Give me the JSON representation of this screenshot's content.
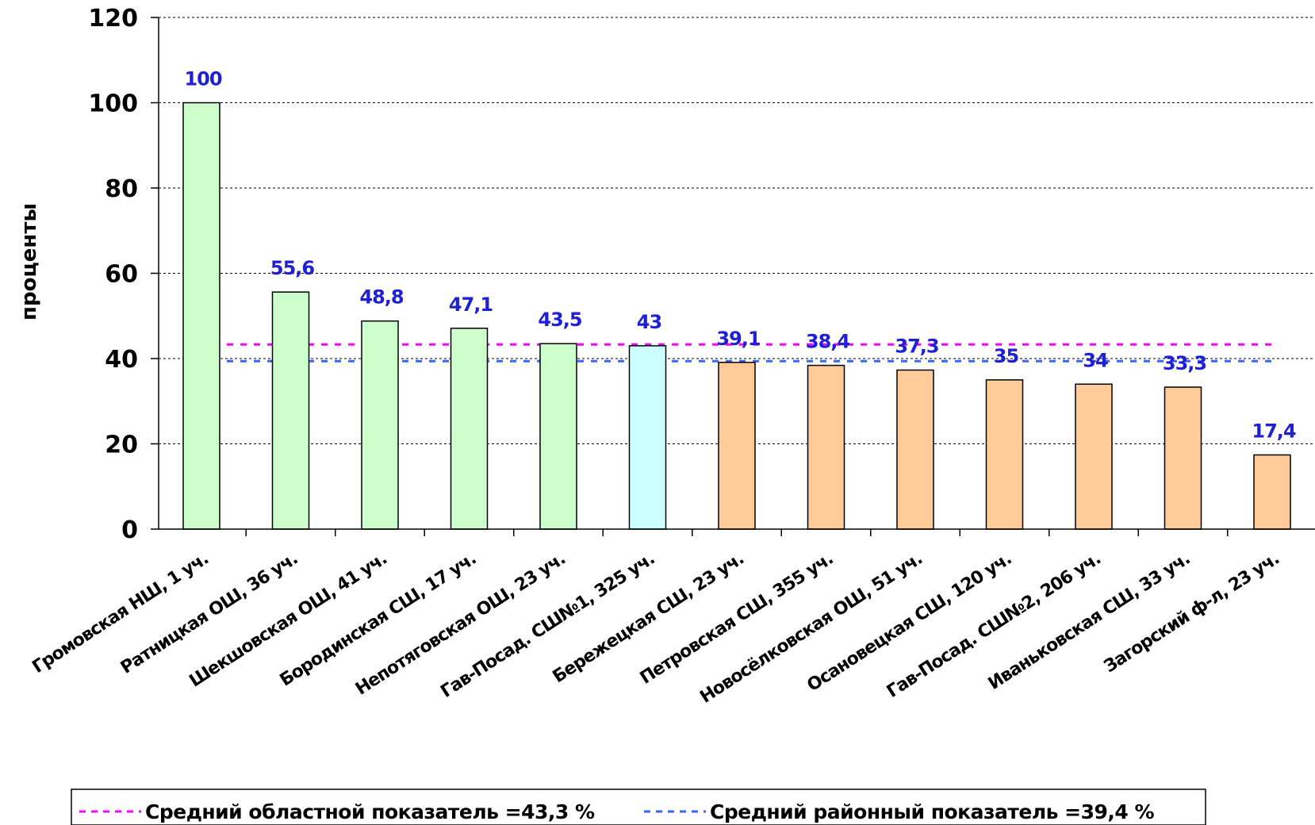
{
  "chart_data": {
    "type": "bar",
    "ylabel": "проценты",
    "ylim": [
      0,
      120
    ],
    "yticks": [
      0,
      20,
      40,
      60,
      80,
      100,
      120
    ],
    "grid": true,
    "categories": [
      "Громовская НШ, 1 уч.",
      "Ратницкая ОШ, 36 уч.",
      "Шекшовская ОШ, 41 уч.",
      "Бородинская СШ, 17 уч.",
      "Непотяговская ОШ, 23 уч.",
      "Гав-Посад. СШ№1, 325 уч.",
      "Бережецкая СШ, 23 уч.",
      "Петровская СШ, 355 уч.",
      "Новосёлковская ОШ, 51 уч.",
      "Осановецкая СШ, 120 уч.",
      "Гав-Посад. СШ№2, 206 уч.",
      "Иваньковская СШ, 33 уч.",
      "Загорский ф-л, 23 уч."
    ],
    "values": [
      100,
      55.6,
      48.8,
      47.1,
      43.5,
      43,
      39.1,
      38.4,
      37.3,
      35,
      34,
      33.3,
      17.4
    ],
    "value_labels": [
      "100",
      "55,6",
      "48,8",
      "47,1",
      "43,5",
      "43",
      "39,1",
      "38,4",
      "37,3",
      "35",
      "34",
      "33,3",
      "17,4"
    ],
    "bar_colors": [
      "#ccffcc",
      "#ccffcc",
      "#ccffcc",
      "#ccffcc",
      "#ccffcc",
      "#ccffff",
      "#ffcc99",
      "#ffcc99",
      "#ffcc99",
      "#ffcc99",
      "#ffcc99",
      "#ffcc99",
      "#ffcc99"
    ],
    "reference_lines": [
      {
        "name": "Средний областной показатель =43,3 %",
        "value": 43.3,
        "color": "#ff00ff"
      },
      {
        "name": "Средний районный показатель =39,4 %",
        "value": 39.4,
        "color": "#3366ff"
      }
    ],
    "legend_position": "bottom",
    "data_label_color": "#1f1fd6"
  }
}
